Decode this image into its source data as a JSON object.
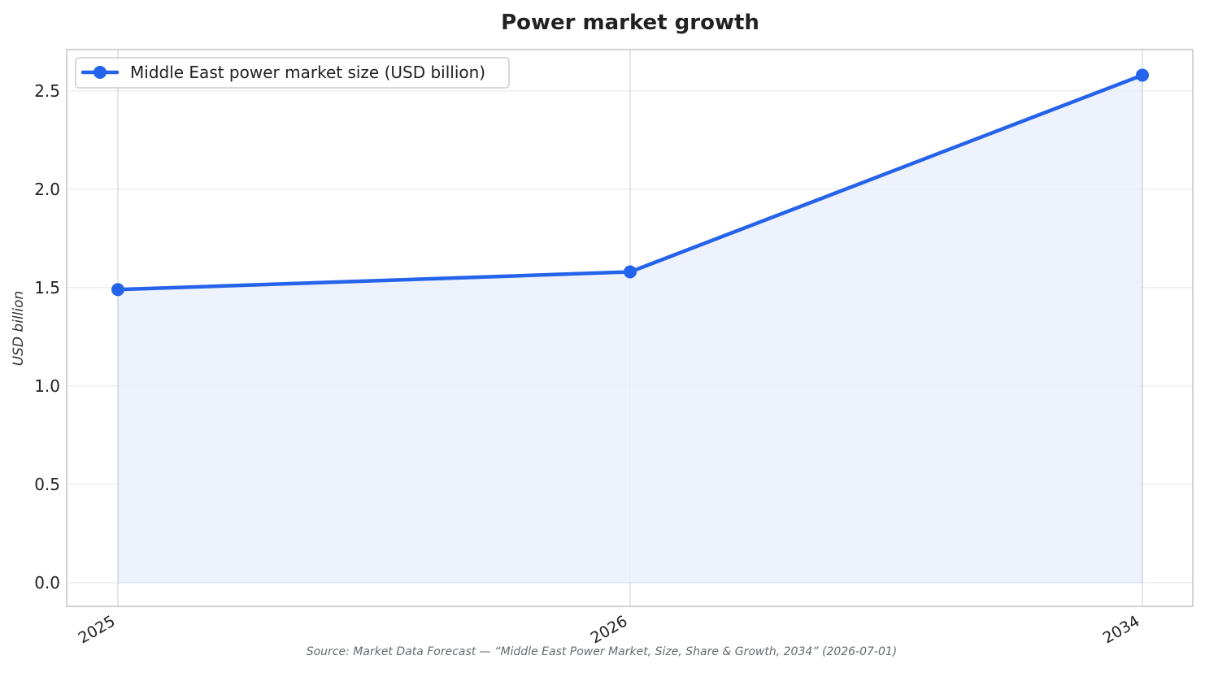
{
  "chart_data": {
    "type": "line",
    "title": "Power market growth",
    "xlabel": "",
    "ylabel": "USD billion",
    "categories": [
      "2025",
      "2026",
      "2034"
    ],
    "series": [
      {
        "name": "Middle East power market size (USD billion)",
        "values": [
          1.49,
          1.58,
          2.58
        ],
        "color": "#2563eb"
      }
    ],
    "ylim": [
      -0.12,
      2.71
    ],
    "yticks": [
      0.0,
      0.5,
      1.0,
      1.5,
      2.0,
      2.5
    ],
    "ytick_labels": [
      "0.0",
      "0.5",
      "1.0",
      "1.5",
      "2.0",
      "2.5"
    ],
    "grid": true,
    "fill_under_line": true,
    "legend_position": "top-left",
    "source_note": "Source: Market Data Forecast — “Middle East Power Market, Size, Share & Growth, 2034” (2026-07-01)"
  },
  "colors": {
    "line": "#2563eb",
    "fill": "#ebf0fb",
    "grid": "#e6e6e6",
    "vgrid": "#c9ccd3",
    "frame": "#c4c4c4",
    "text": "#222222",
    "source_text": "#666a73"
  }
}
